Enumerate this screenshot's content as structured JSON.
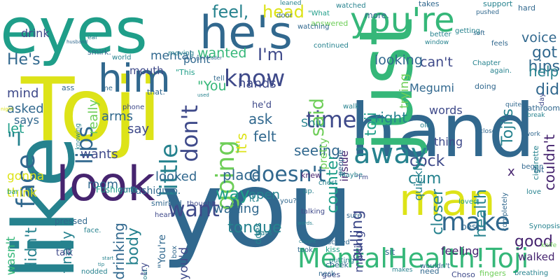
{
  "background": "#ffffff",
  "palette": {
    "purple": "#46246f",
    "indigo": "#3f4a8a",
    "blue": "#31688e",
    "teal": "#26828e",
    "seagreen": "#1f9e89",
    "green": "#35b779",
    "lime": "#6ece58",
    "yellow": "#dde318"
  },
  "words": [
    {
      "text": "Toji",
      "color": "yellow"
    },
    {
      "text": "you",
      "color": "blue"
    },
    {
      "text": "like",
      "color": "teal"
    },
    {
      "text": "hand",
      "color": "blue"
    },
    {
      "text": "eyes",
      "color": "seagreen"
    },
    {
      "text": "just",
      "color": "green"
    },
    {
      "text": "he's",
      "color": "blue"
    },
    {
      "text": "you're",
      "color": "green"
    },
    {
      "text": "look",
      "color": "purple"
    },
    {
      "text": "him",
      "color": "blue"
    },
    {
      "text": "man",
      "color": "yellow"
    },
    {
      "text": "MentalHealth!Toji",
      "color": "green"
    },
    {
      "text": "know",
      "color": "indigo"
    },
    {
      "text": "lips",
      "color": "blue"
    },
    {
      "text": "little",
      "color": "teal"
    },
    {
      "text": "face",
      "color": "blue"
    },
    {
      "text": "going",
      "color": "lime"
    },
    {
      "text": "don't",
      "color": "indigo"
    },
    {
      "text": "time",
      "color": "indigo"
    },
    {
      "text": "away",
      "color": "teal"
    },
    {
      "text": "make",
      "color": "blue"
    },
    {
      "text": "doesn't",
      "color": "blue"
    },
    {
      "text": "want",
      "color": "indigo"
    },
    {
      "text": "feel,",
      "color": "teal"
    },
    {
      "text": "head",
      "color": "yellow"
    },
    {
      "text": "I'm",
      "color": "indigo"
    },
    {
      "text": "He's",
      "color": "blue"
    },
    {
      "text": "\"I",
      "color": "teal"
    },
    {
      "text": "said",
      "color": "lime"
    },
    {
      "text": "toji",
      "color": "seagreen"
    },
    {
      "text": "Toji's",
      "color": "teal"
    },
    {
      "text": "body",
      "color": "teal"
    },
    {
      "text": "didn't",
      "color": "teal"
    },
    {
      "text": "finally",
      "color": "teal"
    },
    {
      "text": "way",
      "color": "seagreen"
    },
    {
      "text": "it's",
      "color": "yellow"
    },
    {
      "text": "good",
      "color": "purple"
    },
    {
      "text": "tongue",
      "color": "teal"
    },
    {
      "text": "drinking",
      "color": "blue"
    },
    {
      "text": "counter",
      "color": "seagreen"
    },
    {
      "text": "pulling",
      "color": "indigo"
    },
    {
      "text": "closer",
      "color": "teal"
    },
    {
      "text": "health",
      "color": "teal"
    },
    {
      "text": "cum",
      "color": "teal"
    },
    {
      "text": "cock",
      "color": "indigo"
    },
    {
      "text": "voice",
      "color": "blue"
    },
    {
      "text": "got",
      "color": "blue"
    },
    {
      "text": "hips",
      "color": "blue"
    },
    {
      "text": "help",
      "color": "teal"
    },
    {
      "text": "did",
      "color": "blue"
    },
    {
      "text": "can't",
      "color": "indigo"
    },
    {
      "text": "looking",
      "color": "blue"
    },
    {
      "text": "right",
      "color": "teal"
    },
    {
      "text": "ask",
      "color": "blue"
    },
    {
      "text": "felt",
      "color": "blue"
    },
    {
      "text": "seeing",
      "color": "blue"
    },
    {
      "text": "place",
      "color": "blue"
    },
    {
      "text": "looked",
      "color": "blue"
    },
    {
      "text": "open",
      "color": "teal"
    },
    {
      "text": "waiting",
      "color": "blue"
    },
    {
      "text": "mental",
      "color": "blue"
    },
    {
      "text": "wanted",
      "color": "green"
    },
    {
      "text": "\"You",
      "color": "green"
    },
    {
      "text": "hands",
      "color": "indigo"
    },
    {
      "text": "really",
      "color": "lime"
    },
    {
      "text": "arms",
      "color": "blue"
    },
    {
      "text": "say",
      "color": "indigo"
    },
    {
      "text": "wants",
      "color": "indigo"
    },
    {
      "text": "room",
      "color": "blue"
    },
    {
      "text": "let",
      "color": "seagreen"
    },
    {
      "text": "mind",
      "color": "indigo"
    },
    {
      "text": "asked",
      "color": "blue"
    },
    {
      "text": "says",
      "color": "blue"
    },
    {
      "text": "gonna",
      "color": "yellow"
    },
    {
      "text": "think",
      "color": "yellow"
    },
    {
      "text": "drink",
      "color": "indigo"
    },
    {
      "text": "mouth",
      "color": "indigo"
    },
    {
      "text": "trying",
      "color": "lime"
    },
    {
      "text": "Megumi",
      "color": "blue"
    },
    {
      "text": "words",
      "color": "indigo"
    },
    {
      "text": "thing",
      "color": "indigo"
    },
    {
      "text": "making",
      "color": "indigo"
    },
    {
      "text": "quickly",
      "color": "teal"
    },
    {
      "text": "Shiu",
      "color": "teal"
    },
    {
      "text": "pretty",
      "color": "lime"
    },
    {
      "text": "inside",
      "color": "purple"
    },
    {
      "text": "couldn't",
      "color": "purple"
    },
    {
      "text": "feeling",
      "color": "purple"
    },
    {
      "text": "walked",
      "color": "purple"
    },
    {
      "text": "x",
      "color": "purple"
    },
    {
      "text": "wasn't",
      "color": "green"
    },
    {
      "text": "you'd",
      "color": "indigo"
    },
    {
      "text": "\"You're",
      "color": "blue"
    },
    {
      "text": "Fushiguro.",
      "color": "blue"
    },
    {
      "text": "smirked",
      "color": "blue"
    },
    {
      "text": "it.",
      "color": "teal"
    },
    {
      "text": "does",
      "color": "teal"
    },
    {
      "text": "pressed",
      "color": "blue"
    },
    {
      "text": "talk",
      "color": "indigo"
    },
    {
      "text": "try",
      "color": "indigo"
    },
    {
      "text": "best",
      "color": "blue"
    },
    {
      "text": "kiss",
      "color": "seagreen"
    },
    {
      "text": "goes",
      "color": "indigo"
    },
    {
      "text": "need",
      "color": "blue"
    },
    {
      "text": "Choso",
      "color": "indigo"
    },
    {
      "text": "wouldn't",
      "color": "blue"
    },
    {
      "text": "sit",
      "color": "blue"
    },
    {
      "text": "chuckled",
      "color": "blue"
    },
    {
      "text": "took",
      "color": "blue"
    },
    {
      "text": "more.",
      "color": "blue"
    },
    {
      "text": "watched",
      "color": "teal"
    },
    {
      "text": "takes",
      "color": "blue"
    },
    {
      "text": "support",
      "color": "teal"
    },
    {
      "text": "leaned",
      "color": "teal"
    },
    {
      "text": "hard",
      "color": "blue"
    },
    {
      "text": "answered",
      "color": "lime"
    },
    {
      "text": "continued",
      "color": "teal"
    },
    {
      "text": "watching",
      "color": "blue"
    },
    {
      "text": "\"What",
      "color": "seagreen"
    },
    {
      "text": "door",
      "color": "blue"
    },
    {
      "text": "pushed",
      "color": "blue"
    },
    {
      "text": "smirk.",
      "color": "blue"
    },
    {
      "text": "ear",
      "color": "teal"
    },
    {
      "text": "husband",
      "color": "blue"
    },
    {
      "text": "world",
      "color": "teal"
    },
    {
      "text": "moving",
      "color": "teal"
    },
    {
      "text": "point",
      "color": "blue"
    },
    {
      "text": "ass",
      "color": "blue"
    },
    {
      "text": "me",
      "color": "blue"
    },
    {
      "text": "that.",
      "color": "blue"
    },
    {
      "text": "\"This",
      "color": "seagreen"
    },
    {
      "text": "tell",
      "color": "blue"
    },
    {
      "text": "phone",
      "color": "indigo"
    },
    {
      "text": "he'd",
      "color": "indigo"
    },
    {
      "text": "Fushiguro",
      "color": "seagreen"
    },
    {
      "text": "smile",
      "color": "blue"
    },
    {
      "text": "heart",
      "color": "indigo"
    },
    {
      "text": "bar",
      "color": "seagreen"
    },
    {
      "text": "walk",
      "color": "teal"
    },
    {
      "text": "chest",
      "color": "teal"
    },
    {
      "text": "knew",
      "color": "purple"
    },
    {
      "text": "people",
      "color": "blue"
    },
    {
      "text": "Maybe",
      "color": "teal"
    },
    {
      "text": "\"I'm",
      "color": "indigo"
    },
    {
      "text": "talking",
      "color": "indigo"
    },
    {
      "text": "sure",
      "color": "blue"
    },
    {
      "text": "up.",
      "color": "teal"
    },
    {
      "text": "neck",
      "color": "blue"
    },
    {
      "text": "putting",
      "color": "teal"
    },
    {
      "text": "cheek",
      "color": "blue"
    },
    {
      "text": "makes",
      "color": "teal"
    },
    {
      "text": "fingers",
      "color": "lime"
    },
    {
      "text": "breathing",
      "color": "teal"
    },
    {
      "text": "thought",
      "color": "indigo"
    },
    {
      "text": "out.",
      "color": "teal"
    },
    {
      "text": "box",
      "color": "blue"
    },
    {
      "text": "nodded",
      "color": "teal"
    },
    {
      "text": "face.",
      "color": "teal"
    },
    {
      "text": "ears",
      "color": "teal"
    },
    {
      "text": "you?",
      "color": "blue"
    },
    {
      "text": "bit",
      "color": "blue"
    },
    {
      "text": "love",
      "color": "teal"
    },
    {
      "text": "day",
      "color": "indigo"
    },
    {
      "text": "loved",
      "color": "seagreen"
    },
    {
      "text": "began",
      "color": "blue"
    },
    {
      "text": "cigarette",
      "color": "teal"
    },
    {
      "text": "again.",
      "color": "teal"
    },
    {
      "text": "knife",
      "color": "lime"
    },
    {
      "text": "Synopsis",
      "color": "teal"
    },
    {
      "text": "Chapter",
      "color": "teal"
    },
    {
      "text": "doing",
      "color": "blue"
    },
    {
      "text": "feels",
      "color": "blue"
    },
    {
      "text": "soft",
      "color": "blue"
    },
    {
      "text": "getting",
      "color": "teal"
    },
    {
      "text": "better",
      "color": "teal"
    },
    {
      "text": "window",
      "color": "teal"
    },
    {
      "text": "bathroom",
      "color": "blue"
    },
    {
      "text": "break",
      "color": "teal"
    },
    {
      "text": "close",
      "color": "blue"
    },
    {
      "text": "quite",
      "color": "blue"
    },
    {
      "text": "completely",
      "color": "blue"
    },
    {
      "text": "work",
      "color": "blue"
    },
    {
      "text": "old",
      "color": "teal"
    },
    {
      "text": "knowing",
      "color": "teal"
    },
    {
      "text": "night",
      "color": "yellow"
    },
    {
      "text": "g/n!reader",
      "color": "blue"
    },
    {
      "text": "used",
      "color": "teal"
    },
    {
      "text": "start",
      "color": "teal"
    },
    {
      "text": "tip",
      "color": "teal"
    },
    {
      "text": "caught",
      "color": "teal"
    },
    {
      "text": "letting",
      "color": "teal"
    },
    {
      "text": "words.",
      "color": "teal"
    },
    {
      "text": "away.",
      "color": "teal"
    },
    {
      "text": "maybe",
      "color": "teal"
    }
  ]
}
